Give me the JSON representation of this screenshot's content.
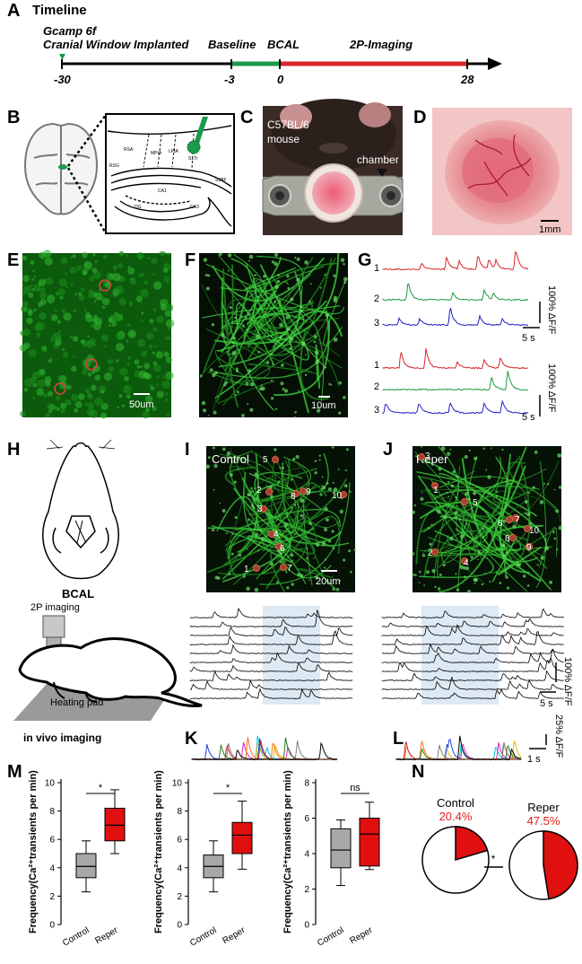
{
  "panels": {
    "A": "A",
    "B": "B",
    "C": "C",
    "D": "D",
    "E": "E",
    "F": "F",
    "G": "G",
    "H": "H",
    "I": "I",
    "J": "J",
    "K": "K",
    "L": "L",
    "M": "M",
    "N": "N"
  },
  "timeline": {
    "title": "Timeline",
    "event1_line1": "Gcamp 6f",
    "event1_line2": "Cranial Window Implanted",
    "baseline": "Baseline",
    "bcal": "BCAL",
    "imaging": "2P-Imaging",
    "ticks": [
      "-30",
      "-3",
      "0",
      "28"
    ],
    "colors": {
      "baseline": "#1a9a4a",
      "imaging": "#d9252a"
    }
  },
  "panel_b": {
    "regions": [
      "RSA",
      "MPtA",
      "LPtA",
      "S1Tr",
      "RSG",
      "S1BF",
      "CA1",
      "CA3",
      "DG"
    ]
  },
  "panel_c": {
    "line1": "C57BL/6",
    "line2": "mouse",
    "chamber": "chamber"
  },
  "panel_d": {
    "scale": "1mm"
  },
  "panel_e": {
    "scale": "50um"
  },
  "panel_f": {
    "scale": "10um"
  },
  "panel_g": {
    "top_labels": [
      "1",
      "2",
      "3"
    ],
    "bottom_labels": [
      "1",
      "2",
      "3"
    ],
    "yscale": "100% ΔF/F",
    "xscale": "5 s",
    "colors": [
      "#d9252a",
      "#1a9a3a",
      "#2020c8"
    ]
  },
  "panel_h": {
    "bcal": "BCAL",
    "imaging": "2P imaging",
    "pad": "Heating pad",
    "vivo": "in vivo imaging"
  },
  "panel_i": {
    "title": "Control",
    "scale": "20um",
    "rois": [
      "1",
      "2",
      "3",
      "4",
      "5",
      "6",
      "7",
      "8",
      "9",
      "10"
    ]
  },
  "panel_j": {
    "title": "Reper",
    "rois": [
      "1",
      "2",
      "3",
      "4",
      "5",
      "6",
      "7",
      "8",
      "9",
      "10"
    ]
  },
  "traces": {
    "yscale": "100% ΔF/F",
    "xscale": "5 s"
  },
  "panel_kl": {
    "yscale": "25% ΔF/F",
    "xscale": "1 s",
    "colors": [
      "#00c8e0",
      "#e020c0",
      "#e0c000",
      "#2040e0",
      "#ff7010",
      "#208020",
      "#d02020",
      "#808080",
      "#000000"
    ]
  },
  "panel_m": {
    "ylabel": "Frequency(Ca²⁺transients per min)",
    "categories": [
      "Control",
      "Reper"
    ],
    "colors": {
      "control": "#a8a8a8",
      "reper": "#e01010"
    }
  },
  "chart_data": [
    {
      "type": "box",
      "categories": [
        "Control",
        "Reper"
      ],
      "ylim": [
        0,
        10
      ],
      "yticks": [
        0,
        2,
        4,
        6,
        8,
        10
      ],
      "series": [
        {
          "min": 2.3,
          "q1": 3.3,
          "median": 4.1,
          "q3": 5.0,
          "max": 5.9
        },
        {
          "min": 5.0,
          "q1": 5.9,
          "median": 7.0,
          "q3": 8.2,
          "max": 9.5
        }
      ],
      "significance": "*"
    },
    {
      "type": "box",
      "categories": [
        "Control",
        "Reper"
      ],
      "ylim": [
        0,
        10
      ],
      "yticks": [
        0,
        2,
        4,
        6,
        8,
        10
      ],
      "series": [
        {
          "min": 2.3,
          "q1": 3.3,
          "median": 4.1,
          "q3": 4.9,
          "max": 5.9
        },
        {
          "min": 3.9,
          "q1": 5.0,
          "median": 6.3,
          "q3": 7.2,
          "max": 8.7
        }
      ],
      "significance": "*"
    },
    {
      "type": "box",
      "categories": [
        "Control",
        "Reper"
      ],
      "ylim": [
        0,
        8
      ],
      "yticks": [
        0,
        2,
        4,
        6,
        8
      ],
      "series": [
        {
          "min": 2.2,
          "q1": 3.2,
          "median": 4.2,
          "q3": 5.4,
          "max": 5.9
        },
        {
          "min": 3.1,
          "q1": 3.3,
          "median": 5.1,
          "q3": 6.0,
          "max": 6.9
        }
      ],
      "significance": "ns"
    },
    {
      "type": "pie",
      "title": "Control",
      "value_label": "20.4%",
      "values": [
        20.4,
        79.6
      ]
    },
    {
      "type": "pie",
      "title": "Reper",
      "value_label": "47.5%",
      "values": [
        47.5,
        52.5
      ],
      "significance": "*"
    }
  ]
}
